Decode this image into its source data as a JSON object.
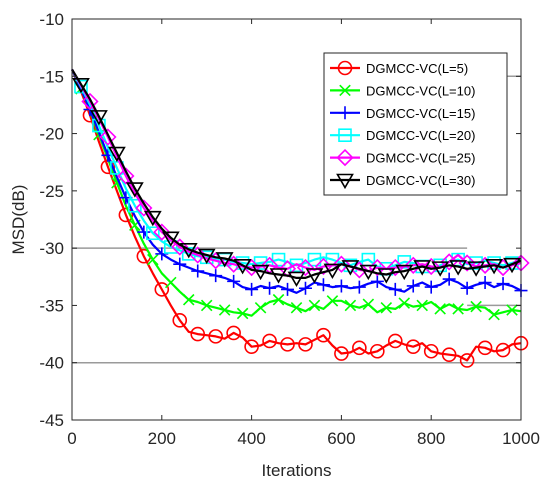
{
  "chart_data": {
    "type": "line",
    "xlabel": "Iterations",
    "ylabel": "MSD(dB)",
    "xlim": [
      0,
      1000
    ],
    "ylim": [
      -45,
      -10
    ],
    "xticks": [
      0,
      200,
      400,
      600,
      800,
      1000
    ],
    "yticks": [
      -45,
      -40,
      -35,
      -30,
      -25,
      -20,
      -15,
      -10
    ],
    "xtick_labels": [
      "0",
      "200",
      "400",
      "600",
      "800",
      "1000"
    ],
    "ytick_labels": [
      "-45",
      "-40",
      "-35",
      "-30",
      "-25",
      "-20",
      "-15",
      "-10"
    ],
    "grid": "horizontal reference lines at -40, -35, -30 and -15",
    "legend_position": "top-right",
    "series": [
      {
        "name": "DGMCC-VC(L=5)",
        "color": "#ff0000",
        "marker": "circle",
        "x": [
          0,
          20,
          40,
          60,
          80,
          100,
          120,
          140,
          160,
          180,
          200,
          220,
          240,
          260,
          280,
          300,
          320,
          340,
          360,
          380,
          400,
          420,
          440,
          460,
          480,
          500,
          520,
          540,
          560,
          580,
          600,
          620,
          640,
          660,
          680,
          700,
          720,
          740,
          760,
          780,
          800,
          820,
          840,
          860,
          880,
          900,
          920,
          940,
          960,
          980,
          1000
        ],
        "y": [
          -14.4,
          -16.3,
          -18.4,
          -20.7,
          -22.9,
          -25.0,
          -27.1,
          -29.0,
          -30.7,
          -32.2,
          -33.6,
          -35.0,
          -36.3,
          -37.3,
          -37.5,
          -37.6,
          -37.7,
          -37.9,
          -37.4,
          -37.8,
          -38.6,
          -38.5,
          -38.1,
          -38.3,
          -38.4,
          -38.3,
          -38.4,
          -38.0,
          -37.6,
          -38.5,
          -39.2,
          -39.1,
          -38.7,
          -39.2,
          -39.0,
          -38.5,
          -38.1,
          -38.4,
          -38.6,
          -38.3,
          -39.0,
          -39.2,
          -39.3,
          -39.4,
          -39.8,
          -38.6,
          -38.7,
          -39.0,
          -38.9,
          -38.4,
          -38.3
        ]
      },
      {
        "name": "DGMCC-VC(L=10)",
        "color": "#00ff00",
        "marker": "x",
        "x": [
          0,
          20,
          40,
          60,
          80,
          100,
          120,
          140,
          160,
          180,
          200,
          220,
          240,
          260,
          280,
          300,
          320,
          340,
          360,
          380,
          400,
          420,
          440,
          460,
          480,
          500,
          520,
          540,
          560,
          580,
          600,
          620,
          640,
          660,
          680,
          700,
          720,
          740,
          760,
          780,
          800,
          820,
          840,
          860,
          880,
          900,
          920,
          940,
          960,
          980,
          1000
        ],
        "y": [
          -14.4,
          -16.1,
          -18.0,
          -20.1,
          -22.2,
          -24.3,
          -26.3,
          -28.0,
          -29.6,
          -31.0,
          -32.2,
          -33.0,
          -33.8,
          -34.5,
          -34.7,
          -35.0,
          -35.2,
          -35.4,
          -35.6,
          -35.7,
          -35.9,
          -35.2,
          -34.7,
          -34.5,
          -34.9,
          -35.2,
          -35.5,
          -35.0,
          -35.3,
          -34.6,
          -34.6,
          -35.0,
          -35.2,
          -34.9,
          -35.6,
          -35.2,
          -35.3,
          -34.8,
          -35.1,
          -35.0,
          -34.7,
          -35.3,
          -34.9,
          -35.3,
          -35.4,
          -35.1,
          -35.2,
          -35.8,
          -35.6,
          -35.4,
          -35.5
        ]
      },
      {
        "name": "DGMCC-VC(L=15)",
        "color": "#0000ff",
        "marker": "plus",
        "x": [
          0,
          20,
          40,
          60,
          80,
          100,
          120,
          140,
          160,
          180,
          200,
          220,
          240,
          260,
          280,
          300,
          320,
          340,
          360,
          380,
          400,
          420,
          440,
          460,
          480,
          500,
          520,
          540,
          560,
          580,
          600,
          620,
          640,
          660,
          680,
          700,
          720,
          740,
          760,
          780,
          800,
          820,
          840,
          860,
          880,
          900,
          920,
          940,
          960,
          980,
          1000
        ],
        "y": [
          -14.4,
          -16.1,
          -17.9,
          -19.9,
          -21.9,
          -23.8,
          -25.6,
          -27.2,
          -28.6,
          -29.7,
          -30.5,
          -31.0,
          -31.4,
          -31.7,
          -32.0,
          -32.2,
          -32.4,
          -32.6,
          -32.9,
          -33.4,
          -33.6,
          -33.3,
          -33.5,
          -33.3,
          -33.6,
          -33.9,
          -33.5,
          -33.0,
          -33.2,
          -33.4,
          -33.3,
          -33.5,
          -33.4,
          -33.1,
          -32.9,
          -33.4,
          -33.6,
          -33.8,
          -33.3,
          -33.0,
          -33.4,
          -33.2,
          -32.7,
          -33.0,
          -33.5,
          -33.2,
          -33.0,
          -33.4,
          -33.1,
          -33.3,
          -33.7
        ]
      },
      {
        "name": "DGMCC-VC(L=20)",
        "color": "#00ffff",
        "marker": "square",
        "x": [
          0,
          20,
          40,
          60,
          80,
          100,
          120,
          140,
          160,
          180,
          200,
          220,
          240,
          260,
          280,
          300,
          320,
          340,
          360,
          380,
          400,
          420,
          440,
          460,
          480,
          500,
          520,
          540,
          560,
          580,
          600,
          620,
          640,
          660,
          680,
          700,
          720,
          740,
          760,
          780,
          800,
          820,
          840,
          860,
          880,
          900,
          920,
          940,
          960,
          980,
          1000
        ],
        "y": [
          -14.4,
          -15.9,
          -17.5,
          -19.3,
          -21.2,
          -23.0,
          -24.8,
          -26.3,
          -27.6,
          -28.7,
          -29.4,
          -29.9,
          -30.2,
          -30.5,
          -30.7,
          -30.8,
          -30.9,
          -31.0,
          -31.2,
          -31.3,
          -31.4,
          -31.3,
          -31.2,
          -31.0,
          -31.2,
          -31.5,
          -31.3,
          -31.0,
          -30.8,
          -31.0,
          -31.3,
          -31.5,
          -31.2,
          -31.0,
          -31.6,
          -31.8,
          -31.5,
          -31.2,
          -31.3,
          -31.6,
          -31.8,
          -31.5,
          -31.2,
          -31.0,
          -31.4,
          -31.3,
          -31.1,
          -31.3,
          -31.5,
          -31.3,
          -31.0
        ]
      },
      {
        "name": "DGMCC-VC(L=25)",
        "color": "#ff00ff",
        "marker": "diamond",
        "x": [
          0,
          20,
          40,
          60,
          80,
          100,
          120,
          140,
          160,
          180,
          200,
          220,
          240,
          260,
          280,
          300,
          320,
          340,
          360,
          380,
          400,
          420,
          440,
          460,
          480,
          500,
          520,
          540,
          560,
          580,
          600,
          620,
          640,
          660,
          680,
          700,
          720,
          740,
          760,
          780,
          800,
          820,
          840,
          860,
          880,
          900,
          920,
          940,
          960,
          980,
          1000
        ],
        "y": [
          -14.4,
          -15.8,
          -17.2,
          -18.7,
          -20.3,
          -22.0,
          -23.7,
          -25.2,
          -26.5,
          -27.6,
          -28.6,
          -29.3,
          -29.9,
          -30.3,
          -30.6,
          -30.9,
          -31.1,
          -31.3,
          -31.4,
          -31.6,
          -31.7,
          -31.6,
          -31.5,
          -31.7,
          -31.8,
          -31.4,
          -31.7,
          -31.9,
          -31.6,
          -31.5,
          -31.4,
          -31.6,
          -31.9,
          -32.0,
          -31.7,
          -31.8,
          -31.7,
          -31.6,
          -31.5,
          -31.4,
          -31.6,
          -31.7,
          -31.2,
          -30.6,
          -31.3,
          -31.6,
          -31.5,
          -31.4,
          -31.7,
          -31.5,
          -31.3
        ]
      },
      {
        "name": "DGMCC-VC(L=30)",
        "color": "#000000",
        "marker": "triangle-down",
        "x": [
          0,
          20,
          40,
          60,
          80,
          100,
          120,
          140,
          160,
          180,
          200,
          220,
          240,
          260,
          280,
          300,
          320,
          340,
          360,
          380,
          400,
          420,
          440,
          460,
          480,
          500,
          520,
          540,
          560,
          580,
          600,
          620,
          640,
          660,
          680,
          700,
          720,
          740,
          760,
          780,
          800,
          820,
          840,
          860,
          880,
          900,
          920,
          940,
          960,
          980,
          1000
        ],
        "y": [
          -14.4,
          -15.7,
          -17.0,
          -18.5,
          -20.1,
          -21.7,
          -23.3,
          -24.8,
          -26.1,
          -27.3,
          -28.3,
          -29.1,
          -29.7,
          -30.1,
          -30.4,
          -30.6,
          -30.8,
          -30.9,
          -31.1,
          -31.5,
          -31.9,
          -32.0,
          -32.2,
          -32.3,
          -32.4,
          -32.6,
          -32.6,
          -32.3,
          -32.1,
          -31.9,
          -31.4,
          -31.6,
          -31.8,
          -32.0,
          -32.2,
          -32.3,
          -32.1,
          -32.0,
          -31.8,
          -31.6,
          -31.8,
          -31.7,
          -31.5,
          -31.6,
          -31.8,
          -31.7,
          -31.6,
          -31.5,
          -31.7,
          -31.4,
          -31.1
        ]
      }
    ]
  }
}
